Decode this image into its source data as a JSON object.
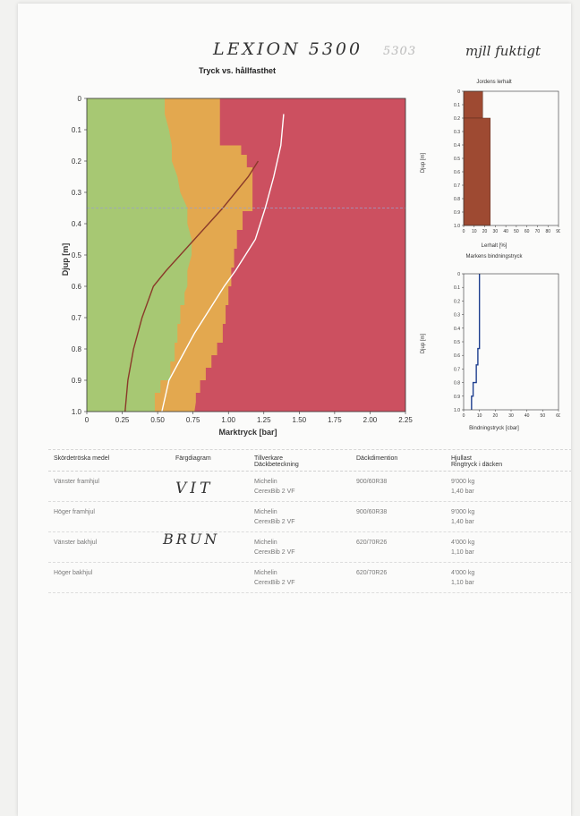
{
  "handwriting": {
    "model": "LEXION 5300",
    "faint": "5303",
    "note": "mjll fuktigt",
    "color_vit": "VIT",
    "color_brun": "BRUN"
  },
  "main_chart": {
    "title": "Tryck vs. hållfasthet",
    "xlabel": "Marktryck [bar]",
    "ylabel": "Djup [m]",
    "xticks": [
      "0",
      "0.25",
      "0.50",
      "0.75",
      "1.00",
      "1.25",
      "1.50",
      "1.75",
      "2.00",
      "2.25"
    ],
    "yticks": [
      "0",
      "0.1",
      "0.2",
      "0.3",
      "0.4",
      "0.5",
      "0.6",
      "0.7",
      "0.8",
      "0.9",
      "1.0"
    ]
  },
  "clay_chart": {
    "title": "Jordens lerhalt",
    "xlabel": "Lerhalt [%]",
    "ylabel": "Djup [m]",
    "xticks": [
      "0",
      "10",
      "20",
      "30",
      "40",
      "50",
      "60",
      "70",
      "80",
      "90"
    ],
    "yticks": [
      "0",
      "0.1",
      "0.2",
      "0.3",
      "0.4",
      "0.5",
      "0.6",
      "0.7",
      "0.8",
      "0.9",
      "1.0"
    ]
  },
  "bind_chart": {
    "title": "Markens bindningstryck",
    "xlabel": "Bindningstryck [cbar]",
    "ylabel": "Djup [m]",
    "xticks": [
      "0",
      "10",
      "20",
      "30",
      "40",
      "50",
      "60"
    ],
    "yticks": [
      "0",
      "0.1",
      "0.2",
      "0.3",
      "0.4",
      "0.5",
      "0.6",
      "0.7",
      "0.8",
      "0.9",
      "1.0"
    ]
  },
  "table": {
    "headers": [
      {
        "top": "",
        "bottom": "Skördetröska medel"
      },
      {
        "top": "",
        "bottom": "Färgdiagram"
      },
      {
        "top": "Tillverkare",
        "bottom": "Däckbeteckning"
      },
      {
        "top": "",
        "bottom": "Däckdimention"
      },
      {
        "top": "Hjullast",
        "bottom": "Ringtryck i däcken"
      }
    ],
    "rows": [
      {
        "wheel": "Vänster framhjul",
        "color": "",
        "maker": "Michelin",
        "tire": "CerexBib 2 VF",
        "dim": "900/60R38",
        "load": "9'000 kg",
        "pressure": "1,40 bar"
      },
      {
        "wheel": "Höger framhjul",
        "color": "",
        "maker": "Michelin",
        "tire": "CerexBib 2 VF",
        "dim": "900/60R38",
        "load": "9'000 kg",
        "pressure": "1,40 bar"
      },
      {
        "wheel": "Vänster bakhjul",
        "color": "",
        "maker": "Michelin",
        "tire": "CerexBib 2 VF",
        "dim": "620/70R26",
        "load": "4'000 kg",
        "pressure": "1,10 bar"
      },
      {
        "wheel": "Höger bakhjul",
        "color": "",
        "maker": "Michelin",
        "tire": "CerexBib 2 VF",
        "dim": "620/70R26",
        "load": "4'000 kg",
        "pressure": "1,10 bar"
      }
    ]
  },
  "chart_data": [
    {
      "type": "area",
      "title": "Tryck vs. hållfasthet",
      "xlabel": "Marktryck [bar]",
      "ylabel": "Djup [m]",
      "xlim": [
        0,
        2.25
      ],
      "ylim": [
        1.0,
        0
      ],
      "zones": [
        {
          "color": "#a7c873",
          "boundary_x": [
            0.55,
            0.55,
            0.58,
            0.6,
            0.6,
            0.64,
            0.66,
            0.71,
            0.71,
            0.74,
            0.74,
            0.71,
            0.71,
            0.69,
            0.69,
            0.66,
            0.66,
            0.64,
            0.64,
            0.62,
            0.62,
            0.59,
            0.59,
            0.52,
            0.52,
            0.48,
            0.48
          ],
          "depth": [
            0,
            0.05,
            0.1,
            0.15,
            0.2,
            0.25,
            0.3,
            0.35,
            0.4,
            0.45,
            0.5,
            0.55,
            0.6,
            0.62,
            0.66,
            0.66,
            0.72,
            0.72,
            0.78,
            0.78,
            0.84,
            0.84,
            0.9,
            0.9,
            0.94,
            0.94,
            1.0
          ]
        },
        {
          "color": "#e3a84f",
          "boundary_x": [
            0.94,
            0.94,
            0.94,
            0.94,
            0.94,
            0.94,
            1.09,
            1.09,
            1.13,
            1.13,
            1.17,
            1.17,
            1.1,
            1.1,
            1.06,
            1.06,
            1.04,
            1.04,
            1.02,
            1.02,
            1.0,
            1.0,
            0.98,
            0.98,
            0.96,
            0.96,
            0.92,
            0.92,
            0.88,
            0.88,
            0.84,
            0.84,
            0.8,
            0.8,
            0.77,
            0.77,
            0.76
          ],
          "depth": [
            0,
            0.03,
            0.06,
            0.09,
            0.12,
            0.15,
            0.15,
            0.18,
            0.18,
            0.22,
            0.22,
            0.36,
            0.36,
            0.42,
            0.42,
            0.48,
            0.48,
            0.54,
            0.54,
            0.6,
            0.6,
            0.66,
            0.66,
            0.72,
            0.72,
            0.78,
            0.78,
            0.82,
            0.82,
            0.86,
            0.86,
            0.9,
            0.9,
            0.94,
            0.94,
            0.97,
            1.0
          ]
        },
        {
          "color": "#cc5060",
          "boundary_x": [
            2.25,
            2.25
          ],
          "depth": [
            0,
            1.0
          ]
        }
      ],
      "series": [
        {
          "color": "#8a3a2a",
          "x": [
            1.21,
            1.14,
            1.05,
            0.96,
            0.86,
            0.76,
            0.66,
            0.56,
            0.47,
            0.39,
            0.33,
            0.29,
            0.27
          ],
          "y": [
            0.2,
            0.25,
            0.3,
            0.35,
            0.4,
            0.45,
            0.5,
            0.55,
            0.6,
            0.7,
            0.8,
            0.9,
            1.0
          ]
        },
        {
          "color": "#ffffff",
          "x": [
            1.39,
            1.37,
            1.32,
            1.26,
            1.19,
            1.12,
            1.05,
            0.97,
            0.9,
            0.83,
            0.76,
            0.7,
            0.64,
            0.58,
            0.53
          ],
          "y": [
            0.05,
            0.15,
            0.25,
            0.35,
            0.45,
            0.5,
            0.55,
            0.6,
            0.65,
            0.7,
            0.75,
            0.8,
            0.85,
            0.9,
            1.0
          ]
        }
      ],
      "hline": 0.35
    },
    {
      "type": "bar",
      "title": "Jordens lerhalt",
      "xlabel": "Lerhalt [%]",
      "ylabel": "Djup [m]",
      "xlim": [
        0,
        100
      ],
      "ylim": [
        1.0,
        0
      ],
      "orientation": "horizontal-step",
      "depth_ranges": [
        [
          0,
          0.2
        ],
        [
          0.2,
          1.0
        ]
      ],
      "values": [
        20,
        28
      ],
      "color": "#9e4a32"
    },
    {
      "type": "line",
      "title": "Markens bindningstryck",
      "xlabel": "Bindningstryck [cbar]",
      "ylabel": "Djup [m]",
      "xlim": [
        0,
        60
      ],
      "ylim": [
        1.0,
        0
      ],
      "x": [
        10,
        10,
        9,
        9,
        8,
        8,
        6,
        6,
        5,
        5
      ],
      "y": [
        0,
        0.55,
        0.55,
        0.67,
        0.67,
        0.8,
        0.8,
        0.9,
        0.9,
        1.0
      ],
      "color": "#1f3f8f"
    }
  ]
}
